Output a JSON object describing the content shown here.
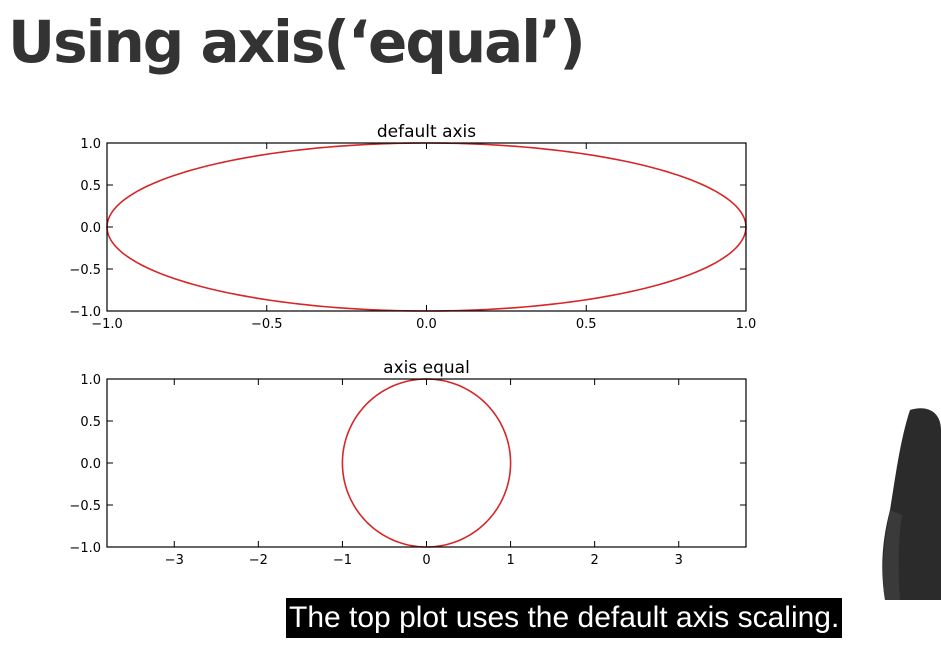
{
  "slide": {
    "title": "Using axis(‘equal’)",
    "caption": "The top plot uses the default axis scaling."
  },
  "colors": {
    "line": "#d62728",
    "axes": "#000000",
    "title": "#333333"
  },
  "chart_data": [
    {
      "type": "line",
      "title": "default axis",
      "xlabel": "",
      "ylabel": "",
      "xlim": [
        -1.0,
        1.0
      ],
      "ylim": [
        -1.0,
        1.0
      ],
      "xticks": [
        "−1.0",
        "−0.5",
        "0.0",
        "0.5",
        "1.0"
      ],
      "xtick_values": [
        -1.0,
        -0.5,
        0.0,
        0.5,
        1.0
      ],
      "yticks": [
        "1.0",
        "0.5",
        "0.0",
        "−0.5",
        "−1.0"
      ],
      "ytick_values": [
        1.0,
        0.5,
        0.0,
        -0.5,
        -1.0
      ],
      "grid": false,
      "series": [
        {
          "x": [
            1.0,
            0.966,
            0.866,
            0.707,
            0.5,
            0.259,
            0.0,
            -0.259,
            -0.5,
            -0.707,
            -0.866,
            -0.966,
            -1.0,
            -0.966,
            -0.866,
            -0.707,
            -0.5,
            -0.259,
            0.0,
            0.259,
            0.5,
            0.707,
            0.866,
            0.966,
            1.0
          ],
          "y": [
            0.0,
            0.259,
            0.5,
            0.707,
            0.866,
            0.966,
            1.0,
            0.966,
            0.866,
            0.707,
            0.5,
            0.259,
            0.0,
            -0.259,
            -0.5,
            -0.707,
            -0.866,
            -0.966,
            -1.0,
            -0.966,
            -0.866,
            -0.707,
            -0.5,
            -0.259,
            0.0
          ]
        }
      ]
    },
    {
      "type": "line",
      "title": "axis equal",
      "xlabel": "",
      "ylabel": "",
      "xlim": [
        -3.8,
        3.8
      ],
      "ylim": [
        -1.0,
        1.0
      ],
      "xticks": [
        "−3",
        "−2",
        "−1",
        "0",
        "1",
        "2",
        "3"
      ],
      "xtick_values": [
        -3,
        -2,
        -1,
        0,
        1,
        2,
        3
      ],
      "yticks": [
        "1.0",
        "0.5",
        "0.0",
        "−0.5",
        "−1.0"
      ],
      "ytick_values": [
        1.0,
        0.5,
        0.0,
        -0.5,
        -1.0
      ],
      "grid": false,
      "aspect": "equal",
      "series": [
        {
          "x": [
            1.0,
            0.966,
            0.866,
            0.707,
            0.5,
            0.259,
            0.0,
            -0.259,
            -0.5,
            -0.707,
            -0.866,
            -0.966,
            -1.0,
            -0.966,
            -0.866,
            -0.707,
            -0.5,
            -0.259,
            0.0,
            0.259,
            0.5,
            0.707,
            0.866,
            0.966,
            1.0
          ],
          "y": [
            0.0,
            0.259,
            0.5,
            0.707,
            0.866,
            0.966,
            1.0,
            0.966,
            0.866,
            0.707,
            0.5,
            0.259,
            0.0,
            -0.259,
            -0.5,
            -0.707,
            -0.866,
            -0.966,
            -1.0,
            -0.966,
            -0.866,
            -0.707,
            -0.5,
            -0.259,
            0.0
          ]
        }
      ]
    }
  ]
}
